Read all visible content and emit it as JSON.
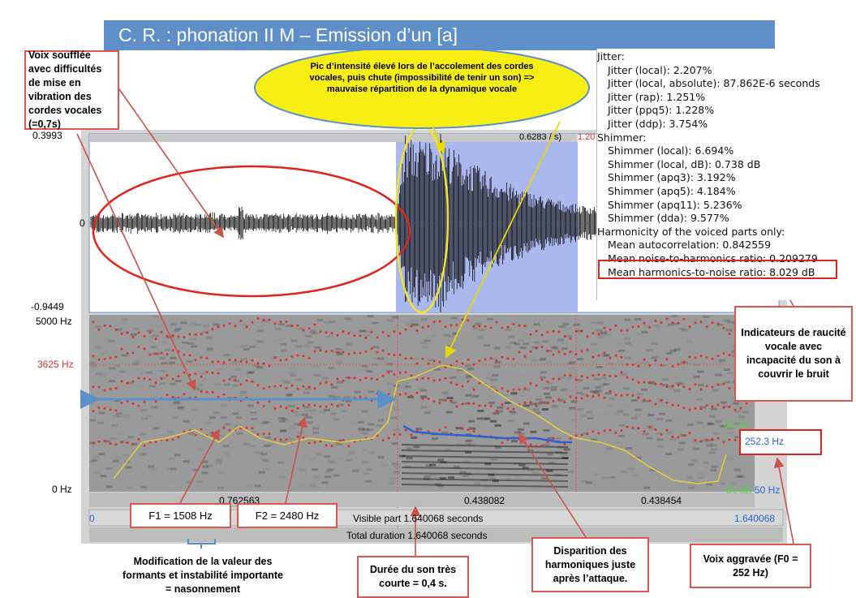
{
  "header": {
    "title": "C. R. : phonation II M – Emission d’un [a]"
  },
  "praat": {
    "waveform": {
      "top_label": "0.3993",
      "zero_label": "0",
      "bottom_label": "-0.9449",
      "selection_header": "0.6283 / s)",
      "selection_end": "1.20"
    },
    "spectrogram": {
      "top_label": "5000 Hz",
      "cursor_label": "3625 Hz",
      "bottom_label": "0 Hz",
      "intensity_top": "82.32",
      "pitch_value": "252.3 Hz",
      "intensity_bottom": "80 dB",
      "pitch_bottom": "50 Hz"
    },
    "time_bar": {
      "left": "0.762563",
      "middle": "0.438082",
      "right": "0.438454"
    },
    "visible_bar": {
      "start": "0",
      "text": "Visible part 1.640068 seconds",
      "end": "1.640068"
    },
    "total_bar": {
      "text": "Total duration 1.640068 seconds"
    }
  },
  "report": {
    "sections": [
      {
        "heading": "Jitter:",
        "items": [
          "Jitter (local): 2.207%",
          "Jitter (local, absolute): 87.862E-6 seconds",
          "Jitter (rap): 1.251%",
          "Jitter (ppq5): 1.228%",
          "Jitter (ddp): 3.754%"
        ]
      },
      {
        "heading": "Shimmer:",
        "items": [
          "Shimmer (local): 6.694%",
          "Shimmer (local, dB): 0.738 dB",
          "Shimmer (apq3): 3.192%",
          "Shimmer (apq5): 4.184%",
          "Shimmer (apq11): 5.236%",
          "Shimmer (dda): 9.577%"
        ]
      },
      {
        "heading": "Harmonicity of the voiced parts only:",
        "items": [
          "Mean autocorrelation: 0.842559",
          "Mean noise-to-harmonics ratio: 0.209279",
          "Mean harmonics-to-noise ratio: 8.029 dB"
        ]
      }
    ]
  },
  "annotations": {
    "breathy": "Voix soufflée avec difficultés de mise en vibration des cordes vocales (=0,7s)",
    "intensity_peak": "Pic d’intensité élevé lors de l’accolement des cordes vocales, puis chute (impossibilité de tenir un son) => mauvaise répartition de la dynamique vocale",
    "hoarseness": "Indicateurs de raucité vocale avec incapacité du son à couvrir le bruit",
    "f1": "F1 = 1508 Hz",
    "f2": "F2 = 2480 Hz",
    "formants": "Modification de la valeur des formants et instabilité importante = nasonnement",
    "duration": "Durée du son très courte = 0,4 s.",
    "harmonics": "Disparition des harmoniques juste après l’attaque.",
    "f0": "Voix aggravée (F0 = 252 Hz)"
  }
}
